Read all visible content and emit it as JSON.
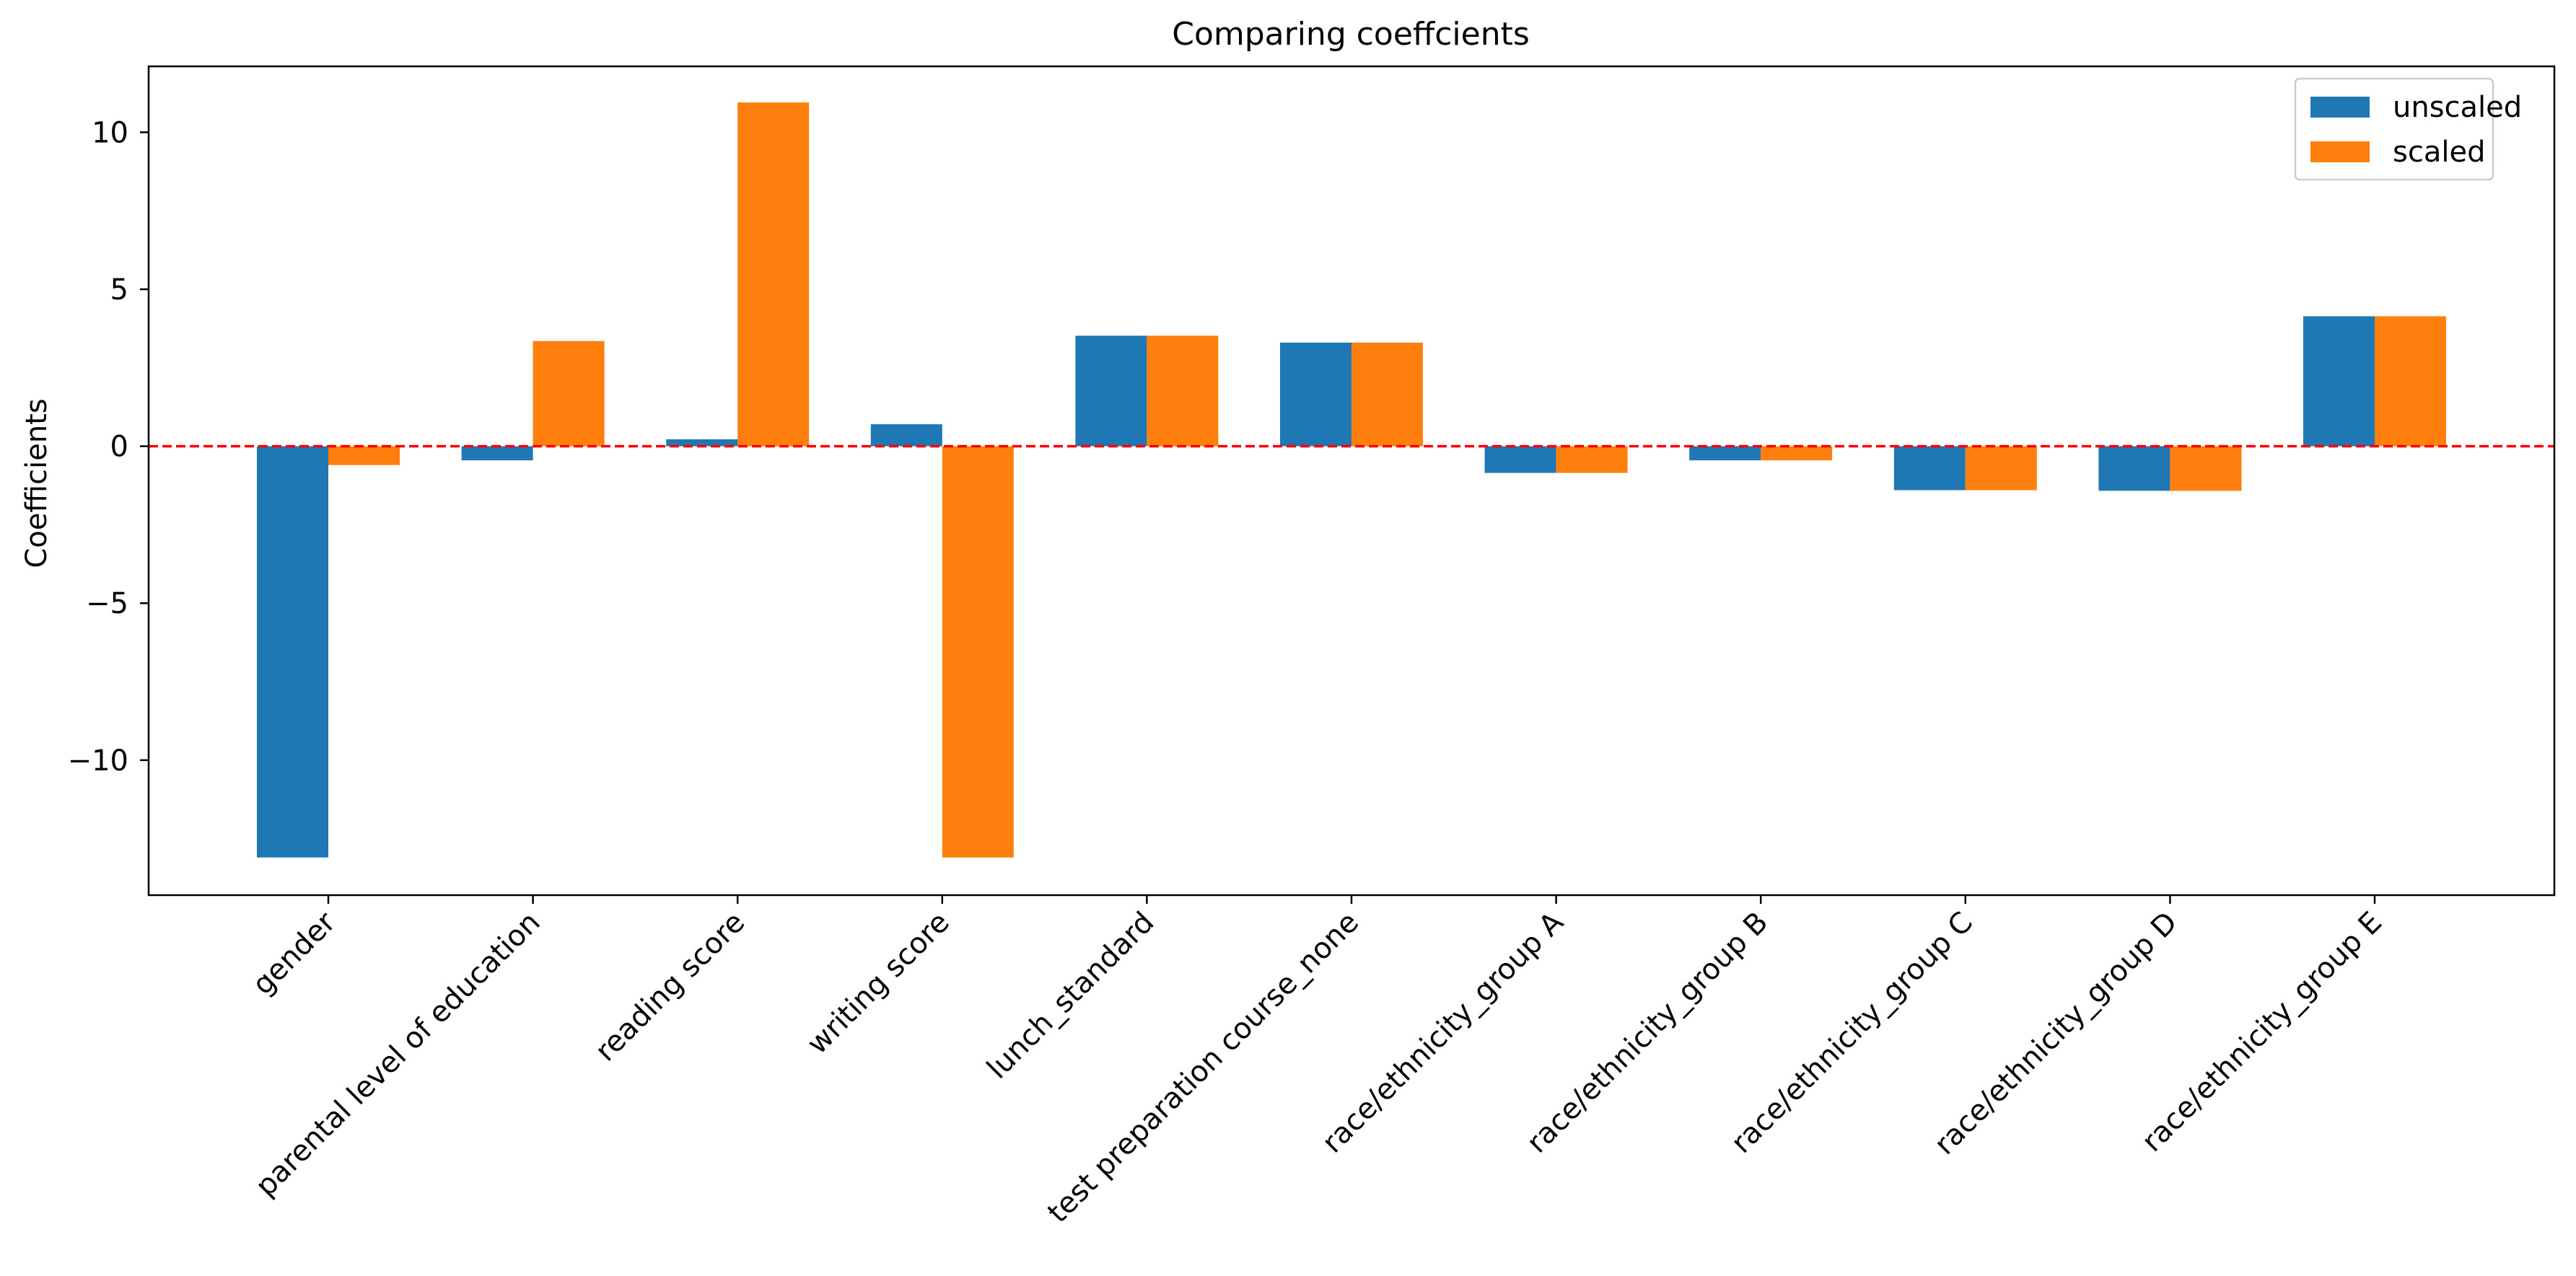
{
  "chart_data": {
    "type": "bar",
    "title": "Comparing coeffcients",
    "xlabel": "",
    "ylabel": "Coefficients",
    "categories": [
      "gender",
      "parental level of education",
      "reading score",
      "writing score",
      "lunch_standard",
      "test preparation course_none",
      "race/ethnicity_group A",
      "race/ethnicity_group B",
      "race/ethnicity_group C",
      "race/ethnicity_group D",
      "race/ethnicity_group E"
    ],
    "series": [
      {
        "name": "unscaled",
        "color": "#1f77b4",
        "values": [
          -13.1,
          -0.45,
          0.22,
          0.7,
          3.52,
          3.3,
          -0.85,
          -0.45,
          -1.4,
          -1.42,
          4.14
        ]
      },
      {
        "name": "scaled",
        "color": "#ff7f0e",
        "values": [
          -0.6,
          3.35,
          10.95,
          -13.1,
          3.52,
          3.3,
          -0.85,
          -0.45,
          -1.4,
          -1.42,
          4.14
        ]
      }
    ],
    "ylim": [
      -14.3,
      12.1
    ],
    "yticks": [
      10,
      5,
      0,
      -5,
      -10
    ],
    "ytick_labels": [
      "10",
      "5",
      "0",
      "−5",
      "−10"
    ],
    "reference_line": {
      "y": 0,
      "color": "#ff0000",
      "style": "dashed"
    },
    "legend_placement": "top-right",
    "grid": false
  }
}
